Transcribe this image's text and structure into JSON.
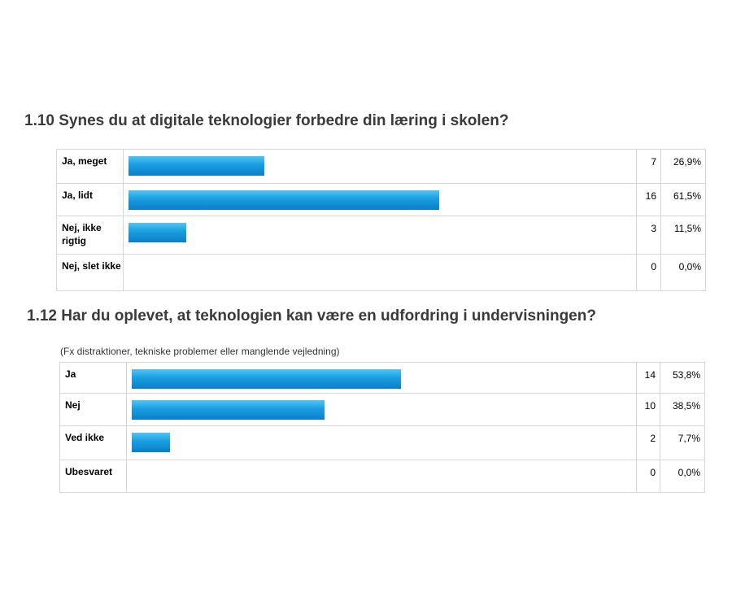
{
  "chart_data": [
    {
      "type": "bar",
      "title": "1.10 Synes du at digitale teknologier forbedre din læring i skolen?",
      "subtitle": "",
      "categories": [
        "Ja, meget",
        "Ja, lidt",
        "Nej, ikke rigtig",
        "Nej, slet ikke"
      ],
      "values": [
        7,
        16,
        3,
        0
      ],
      "counts_text": [
        "7",
        "16",
        "3",
        "0"
      ],
      "percents": [
        26.9,
        61.5,
        11.5,
        0.0
      ],
      "percents_text": [
        "26,9%",
        "61,5%",
        "11,5%",
        "0,0%"
      ],
      "bar_color": "#1a9de0"
    },
    {
      "type": "bar",
      "title": "1.12 Har du oplevet, at teknologien kan være en udfordring i undervisningen?",
      "subtitle": "(Fx distraktioner, tekniske problemer eller manglende vejledning)",
      "categories": [
        "Ja",
        "Nej",
        "Ved ikke",
        "Ubesvaret"
      ],
      "values": [
        14,
        10,
        2,
        0
      ],
      "counts_text": [
        "14",
        "10",
        "2",
        "0"
      ],
      "percents": [
        53.8,
        38.5,
        7.7,
        0.0
      ],
      "percents_text": [
        "53,8%",
        "38,5%",
        "7,7%",
        "0,0%"
      ],
      "bar_color": "#1a9de0"
    }
  ]
}
